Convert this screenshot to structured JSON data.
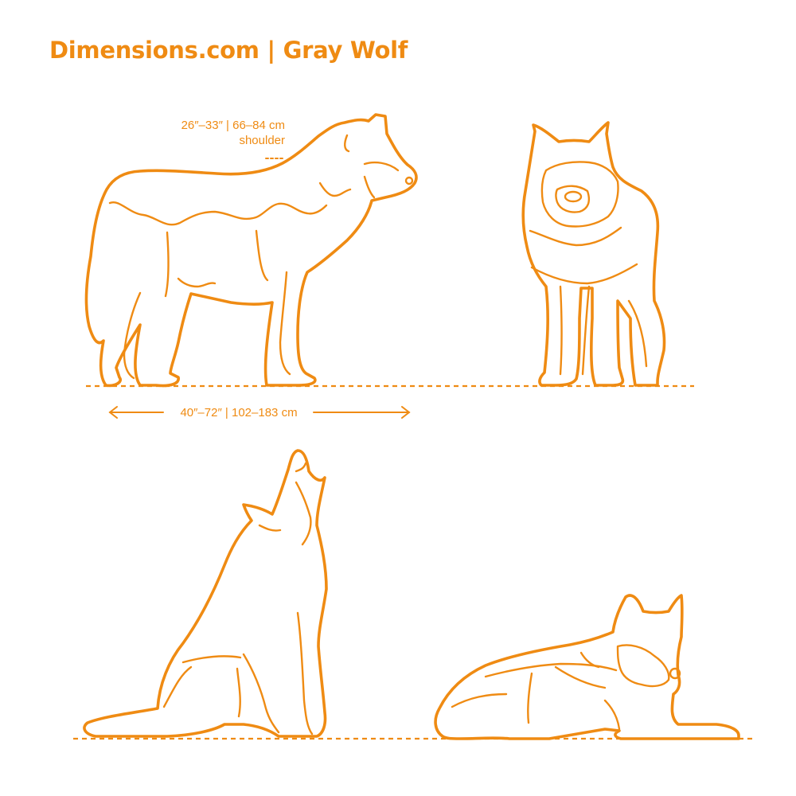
{
  "title": "Dimensions.com | Gray Wolf",
  "shoulder": {
    "measure": "26″–33″ | 66–84 cm",
    "label": "shoulder"
  },
  "length": {
    "measure": "40″–72″ | 102–183 cm"
  },
  "colors": {
    "accent": "#ef8b13",
    "background": "#ffffff"
  },
  "views": [
    "side-standing",
    "front-standing",
    "howling-sitting",
    "lying-down"
  ]
}
